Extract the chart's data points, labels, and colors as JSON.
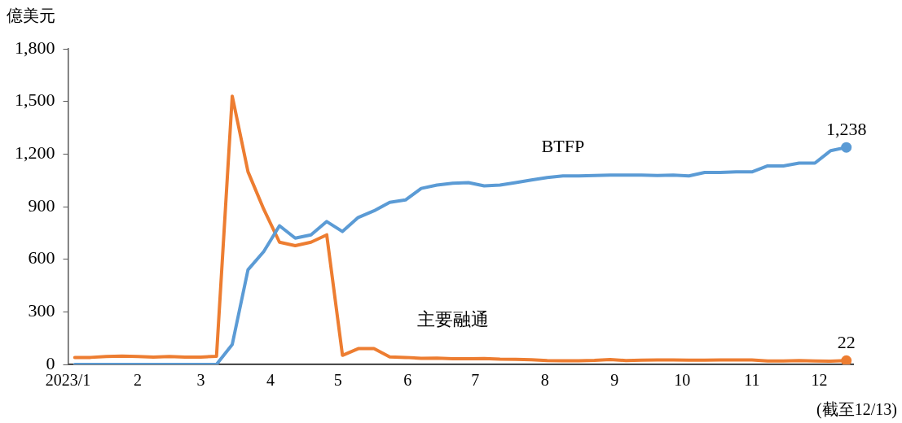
{
  "chart_data": {
    "type": "line",
    "ylabel": "億美元",
    "annotations": [
      "(截至12/13)"
    ],
    "x": [
      "2023-01-04",
      "2023-01-11",
      "2023-01-18",
      "2023-01-25",
      "2023-02-01",
      "2023-02-08",
      "2023-02-15",
      "2023-02-22",
      "2023-03-01",
      "2023-03-08",
      "2023-03-15",
      "2023-03-22",
      "2023-03-29",
      "2023-04-05",
      "2023-04-12",
      "2023-04-19",
      "2023-04-26",
      "2023-05-03",
      "2023-05-10",
      "2023-05-17",
      "2023-05-24",
      "2023-05-31",
      "2023-06-07",
      "2023-06-14",
      "2023-06-21",
      "2023-06-28",
      "2023-07-05",
      "2023-07-12",
      "2023-07-19",
      "2023-07-26",
      "2023-08-02",
      "2023-08-09",
      "2023-08-16",
      "2023-08-23",
      "2023-08-30",
      "2023-09-06",
      "2023-09-13",
      "2023-09-20",
      "2023-09-27",
      "2023-10-04",
      "2023-10-11",
      "2023-10-18",
      "2023-10-25",
      "2023-11-01",
      "2023-11-08",
      "2023-11-15",
      "2023-11-22",
      "2023-11-29",
      "2023-12-06",
      "2023-12-13"
    ],
    "series": [
      {
        "name": "BTFP",
        "color": "#5b9bd5",
        "values": [
          0,
          0,
          0,
          0,
          0,
          0,
          0,
          0,
          0,
          0,
          114,
          540,
          644,
          791,
          720,
          739,
          815,
          758,
          838,
          876,
          924,
          938,
          1004,
          1023,
          1033,
          1037,
          1018,
          1023,
          1037,
          1052,
          1066,
          1075,
          1075,
          1078,
          1080,
          1080,
          1080,
          1078,
          1080,
          1075,
          1095,
          1095,
          1098,
          1098,
          1132,
          1132,
          1148,
          1148,
          1219,
          1238
        ],
        "value_labels": [
          null,
          null,
          null,
          null,
          null,
          null,
          null,
          null,
          null,
          null,
          null,
          null,
          null,
          null,
          null,
          null,
          null,
          null,
          null,
          null,
          null,
          null,
          null,
          null,
          null,
          null,
          null,
          null,
          null,
          null,
          null,
          null,
          null,
          null,
          null,
          null,
          null,
          null,
          null,
          null,
          null,
          null,
          null,
          null,
          null,
          null,
          null,
          null,
          null,
          "1,238"
        ]
      },
      {
        "name": "主要融通",
        "color": "#ed7d31",
        "values": [
          40,
          40,
          45,
          48,
          45,
          42,
          45,
          42,
          42,
          46,
          1530,
          1099,
          885,
          697,
          677,
          697,
          739,
          52,
          90,
          90,
          43,
          40,
          35,
          36,
          33,
          33,
          34,
          30,
          29,
          27,
          22,
          21,
          21,
          23,
          28,
          22,
          24,
          26,
          26,
          24,
          24,
          26,
          26,
          26,
          20,
          20,
          22,
          20,
          18,
          22
        ],
        "value_labels": [
          null,
          null,
          null,
          null,
          null,
          null,
          null,
          null,
          null,
          null,
          null,
          null,
          null,
          null,
          null,
          null,
          null,
          null,
          null,
          null,
          null,
          null,
          null,
          null,
          null,
          null,
          null,
          null,
          null,
          null,
          null,
          null,
          null,
          null,
          null,
          null,
          null,
          null,
          null,
          null,
          null,
          null,
          null,
          null,
          null,
          null,
          null,
          null,
          null,
          "22"
        ]
      }
    ],
    "xlim": [
      "2023-01-01",
      "2023-12-16"
    ],
    "xticks": [
      {
        "value": "2023-01-01",
        "label": "2023/1"
      },
      {
        "value": "2023-02-01",
        "label": "2"
      },
      {
        "value": "2023-03-01",
        "label": "3"
      },
      {
        "value": "2023-04-01",
        "label": "4"
      },
      {
        "value": "2023-05-01",
        "label": "5"
      },
      {
        "value": "2023-06-01",
        "label": "6"
      },
      {
        "value": "2023-07-01",
        "label": "7"
      },
      {
        "value": "2023-08-01",
        "label": "8"
      },
      {
        "value": "2023-09-01",
        "label": "9"
      },
      {
        "value": "2023-10-01",
        "label": "10"
      },
      {
        "value": "2023-11-01",
        "label": "11"
      },
      {
        "value": "2023-12-01",
        "label": "12"
      }
    ],
    "ylim": [
      0,
      1800
    ],
    "yticks": [
      0,
      300,
      600,
      900,
      {
        "value": 1200,
        "label": "1,200"
      },
      {
        "value": 1500,
        "label": "1,500"
      },
      {
        "value": 1800,
        "label": "1,800"
      }
    ],
    "grid": false,
    "legend": false,
    "marker": "none",
    "line_style": "solid"
  }
}
